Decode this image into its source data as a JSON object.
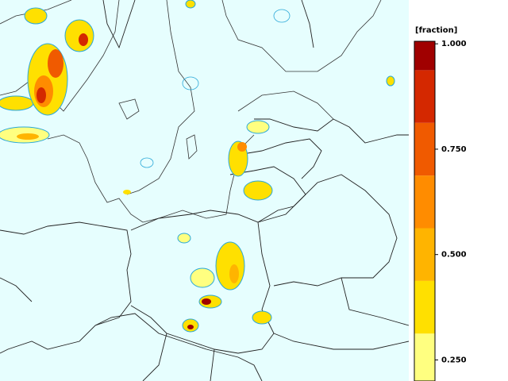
{
  "colorbar": {
    "title": "[fraction]",
    "ylim": [
      0.2,
      1.006
    ],
    "bins": [
      0.1875,
      0.3125,
      0.4375,
      0.5625,
      0.6875,
      0.8125,
      0.9375,
      1.0625
    ],
    "colors": [
      "#ffff80",
      "#ffe000",
      "#ffb400",
      "#ff8c00",
      "#f05a00",
      "#d42800",
      "#a00000"
    ],
    "ticks": [
      {
        "value": 1,
        "label": "1.000"
      },
      {
        "value": 0.75,
        "label": "0.750"
      },
      {
        "value": 0.5,
        "label": "0.500"
      },
      {
        "value": 0.25,
        "label": "0.250"
      }
    ]
  }
}
